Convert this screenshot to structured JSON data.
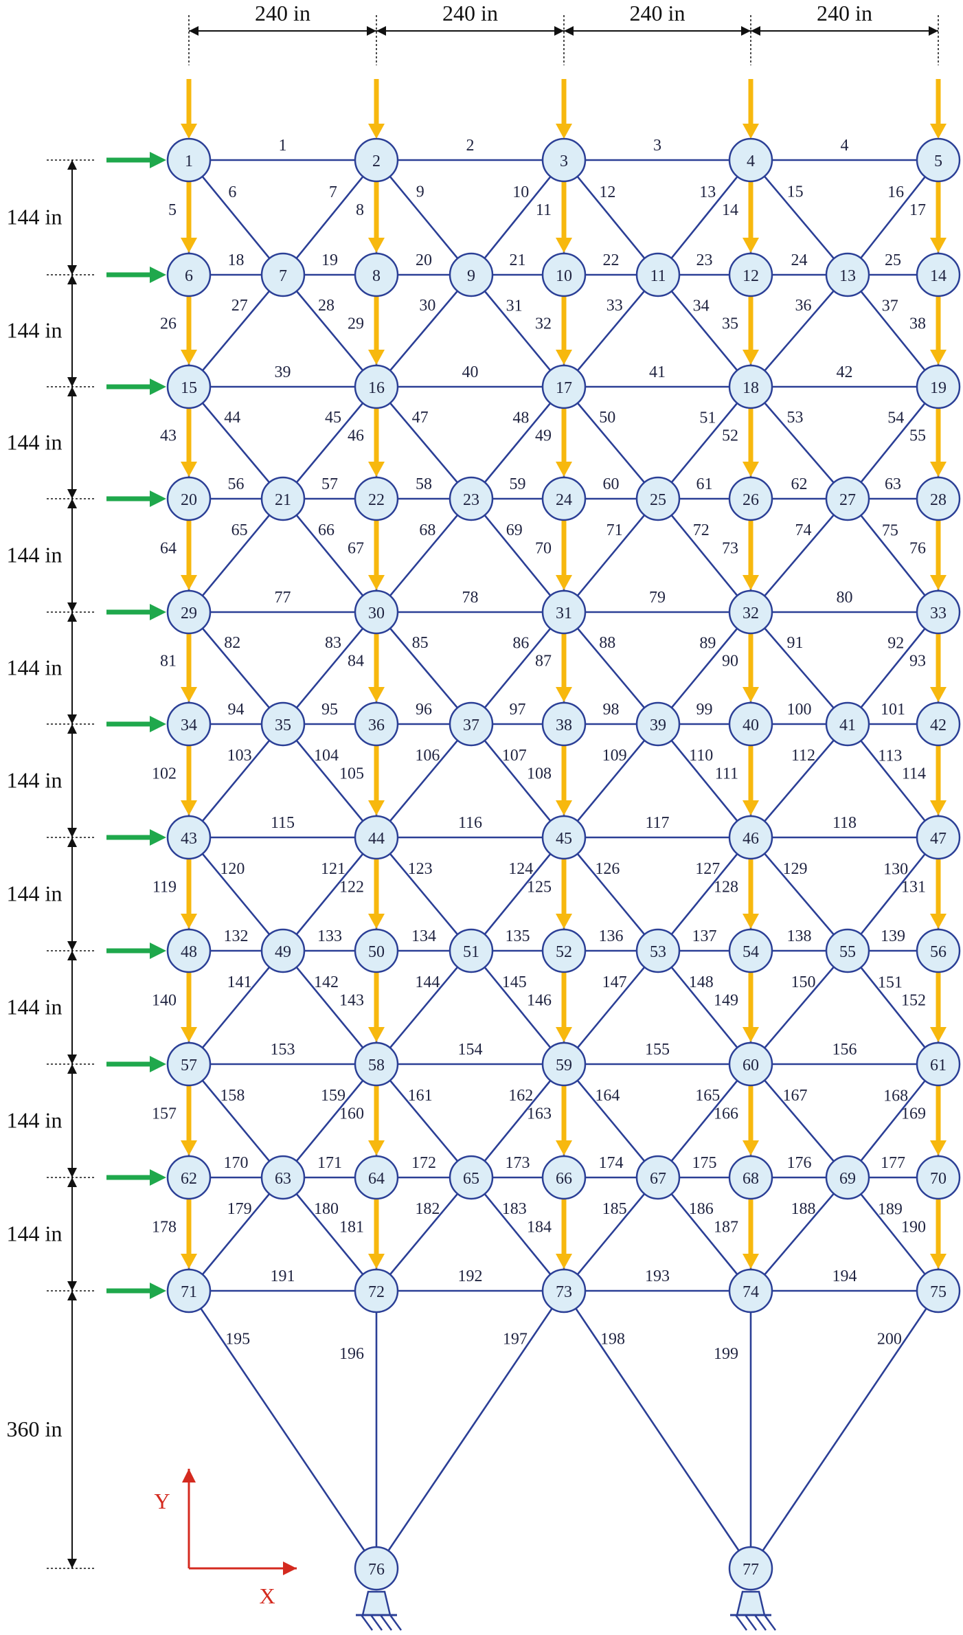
{
  "dimensions": {
    "horizontal_spacing_label": "240 in",
    "vertical_spacing_label": "144 in",
    "bottom_height_label": "360 in",
    "horizontal_spans_count": 4,
    "vertical_spans_count": 10
  },
  "axes": {
    "x_label": "X",
    "y_label": "Y"
  },
  "colors": {
    "member": "#2b3f96",
    "node_fill": "#dcedf7",
    "vertical_load": "#f7b80e",
    "horizontal_load": "#1fa84c",
    "axis": "#d42a1f"
  },
  "supports": {
    "nodes": [
      76,
      77
    ],
    "icon": "pin-support-icon"
  },
  "loads": {
    "vertical_load_icon": "down-arrow-icon",
    "horizontal_load_icon": "right-arrow-icon"
  },
  "structure": {
    "name_visible": false,
    "node_count": 77,
    "member_count": 200
  }
}
